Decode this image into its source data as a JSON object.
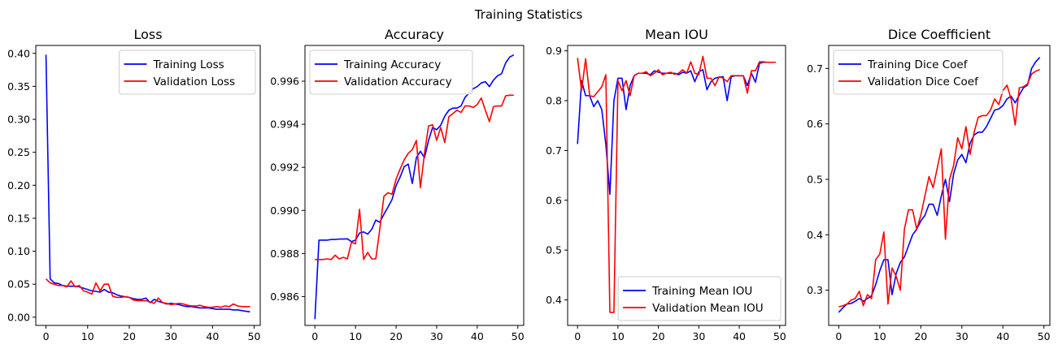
{
  "figure": {
    "title": "Training Statistics"
  },
  "chart_data": [
    {
      "type": "line",
      "title": "Loss",
      "xlabel": "",
      "ylabel": "",
      "xlim": [
        -2.45,
        51.45
      ],
      "ylim": [
        -0.0125,
        0.412
      ],
      "xticks": [
        0,
        10,
        20,
        30,
        40,
        50
      ],
      "yticks": [
        0.0,
        0.05,
        0.1,
        0.15,
        0.2,
        0.25,
        0.3,
        0.35,
        0.4
      ],
      "ytick_labels": [
        "0.00",
        "0.05",
        "0.10",
        "0.15",
        "0.20",
        "0.25",
        "0.30",
        "0.35",
        "0.40"
      ],
      "legend_loc": "upper right",
      "series": [
        {
          "name": "Training Loss",
          "color": "#0000ff",
          "values": [
            0.398,
            0.058,
            0.052,
            0.051,
            0.048,
            0.047,
            0.047,
            0.047,
            0.046,
            0.044,
            0.042,
            0.04,
            0.039,
            0.038,
            0.042,
            0.038,
            0.037,
            0.034,
            0.032,
            0.031,
            0.03,
            0.028,
            0.027,
            0.027,
            0.029,
            0.022,
            0.027,
            0.024,
            0.022,
            0.02,
            0.021,
            0.02,
            0.019,
            0.017,
            0.016,
            0.016,
            0.015,
            0.014,
            0.014,
            0.014,
            0.013,
            0.012,
            0.012,
            0.012,
            0.012,
            0.011,
            0.011,
            0.01,
            0.009,
            0.008
          ]
        },
        {
          "name": "Validation Loss",
          "color": "#ff0000",
          "values": [
            0.058,
            0.052,
            0.05,
            0.048,
            0.048,
            0.046,
            0.055,
            0.046,
            0.048,
            0.04,
            0.038,
            0.035,
            0.052,
            0.04,
            0.05,
            0.05,
            0.032,
            0.03,
            0.03,
            0.031,
            0.03,
            0.026,
            0.025,
            0.025,
            0.025,
            0.023,
            0.021,
            0.029,
            0.022,
            0.021,
            0.019,
            0.02,
            0.021,
            0.02,
            0.018,
            0.017,
            0.017,
            0.018,
            0.016,
            0.015,
            0.015,
            0.016,
            0.015,
            0.017,
            0.016,
            0.02,
            0.017,
            0.016,
            0.016,
            0.016
          ]
        }
      ]
    },
    {
      "type": "line",
      "title": "Accuracy",
      "xlabel": "",
      "ylabel": "",
      "xlim": [
        -2.45,
        51.45
      ],
      "ylim": [
        0.98466,
        0.99766
      ],
      "xticks": [
        0,
        10,
        20,
        30,
        40,
        50
      ],
      "yticks": [
        0.986,
        0.988,
        0.99,
        0.992,
        0.994,
        0.996
      ],
      "ytick_labels": [
        "0.986",
        "0.988",
        "0.990",
        "0.992",
        "0.994",
        "0.996"
      ],
      "legend_loc": "upper left",
      "series": [
        {
          "name": "Training Accuracy",
          "color": "#0000ff",
          "values": [
            0.98495,
            0.98862,
            0.98862,
            0.98862,
            0.98865,
            0.98865,
            0.98867,
            0.98867,
            0.98868,
            0.98855,
            0.98862,
            0.98895,
            0.989,
            0.9889,
            0.98912,
            0.98955,
            0.98945,
            0.98982,
            0.99015,
            0.9905,
            0.99115,
            0.99155,
            0.99203,
            0.99215,
            0.99125,
            0.99245,
            0.99275,
            0.99245,
            0.99325,
            0.99385,
            0.99375,
            0.99395,
            0.99438,
            0.99465,
            0.99475,
            0.99475,
            0.99485,
            0.99525,
            0.99545,
            0.99565,
            0.99575,
            0.99592,
            0.99598,
            0.99575,
            0.99605,
            0.99625,
            0.99635,
            0.99685,
            0.99712,
            0.99722
          ]
        },
        {
          "name": "Validation Accuracy",
          "color": "#ff0000",
          "values": [
            0.98772,
            0.98772,
            0.98772,
            0.98775,
            0.98772,
            0.98792,
            0.98775,
            0.98782,
            0.98775,
            0.98852,
            0.98845,
            0.99005,
            0.98772,
            0.98805,
            0.98775,
            0.98775,
            0.98915,
            0.99065,
            0.99082,
            0.99075,
            0.99145,
            0.99192,
            0.99235,
            0.99265,
            0.99282,
            0.99325,
            0.99105,
            0.99265,
            0.99392,
            0.99398,
            0.99325,
            0.99385,
            0.99315,
            0.99435,
            0.9945,
            0.99465,
            0.99455,
            0.99485,
            0.99485,
            0.99478,
            0.99492,
            0.99522,
            0.99465,
            0.99412,
            0.99482,
            0.99485,
            0.99485,
            0.99532,
            0.99535,
            0.99535
          ]
        }
      ]
    },
    {
      "type": "line",
      "title": "Mean IOU",
      "xlabel": "",
      "ylabel": "",
      "xlim": [
        -2.45,
        51.45
      ],
      "ylim": [
        0.3488,
        0.9108
      ],
      "xticks": [
        0,
        10,
        20,
        30,
        40,
        50
      ],
      "yticks": [
        0.4,
        0.5,
        0.6,
        0.7,
        0.8,
        0.9
      ],
      "ytick_labels": [
        "0.4",
        "0.5",
        "0.6",
        "0.7",
        "0.8",
        "0.9"
      ],
      "legend_loc": "lower right",
      "series": [
        {
          "name": "Training Mean IOU",
          "color": "#0000ff",
          "values": [
            0.713,
            0.84,
            0.81,
            0.81,
            0.788,
            0.8,
            0.782,
            0.712,
            0.612,
            0.8,
            0.845,
            0.845,
            0.782,
            0.83,
            0.85,
            0.855,
            0.855,
            0.855,
            0.852,
            0.86,
            0.857,
            0.855,
            0.855,
            0.855,
            0.855,
            0.852,
            0.857,
            0.855,
            0.86,
            0.838,
            0.858,
            0.862,
            0.822,
            0.838,
            0.845,
            0.847,
            0.848,
            0.8,
            0.848,
            0.85,
            0.85,
            0.85,
            0.83,
            0.855,
            0.837,
            0.875,
            0.877,
            0.877,
            0.877,
            0.877
          ]
        },
        {
          "name": "Validation Mean IOU",
          "color": "#ff0000",
          "values": [
            0.886,
            0.82,
            0.884,
            0.81,
            0.808,
            0.818,
            0.828,
            0.852,
            0.375,
            0.375,
            0.84,
            0.82,
            0.84,
            0.81,
            0.85,
            0.855,
            0.855,
            0.858,
            0.85,
            0.855,
            0.862,
            0.852,
            0.855,
            0.857,
            0.853,
            0.855,
            0.862,
            0.855,
            0.878,
            0.855,
            0.852,
            0.889,
            0.845,
            0.845,
            0.83,
            0.848,
            0.845,
            0.838,
            0.85,
            0.85,
            0.85,
            0.85,
            0.815,
            0.86,
            0.86,
            0.878,
            0.878,
            0.877,
            0.877,
            0.877
          ]
        }
      ]
    },
    {
      "type": "line",
      "title": "Dice Coefficient",
      "xlabel": "",
      "ylabel": "",
      "xlim": [
        -2.45,
        51.45
      ],
      "ylim": [
        0.2365,
        0.7415
      ],
      "xticks": [
        0,
        10,
        20,
        30,
        40,
        50
      ],
      "yticks": [
        0.3,
        0.4,
        0.5,
        0.6,
        0.7
      ],
      "ytick_labels": [
        "0.3",
        "0.4",
        "0.5",
        "0.6",
        "0.7"
      ],
      "legend_loc": "upper left",
      "series": [
        {
          "name": "Training Dice Coef",
          "color": "#0000ff",
          "values": [
            0.26,
            0.268,
            0.275,
            0.276,
            0.28,
            0.285,
            0.28,
            0.285,
            0.29,
            0.31,
            0.335,
            0.355,
            0.355,
            0.292,
            0.33,
            0.35,
            0.36,
            0.38,
            0.4,
            0.41,
            0.425,
            0.435,
            0.455,
            0.455,
            0.435,
            0.47,
            0.5,
            0.46,
            0.51,
            0.535,
            0.545,
            0.53,
            0.565,
            0.58,
            0.585,
            0.585,
            0.595,
            0.61,
            0.625,
            0.627,
            0.633,
            0.645,
            0.65,
            0.638,
            0.652,
            0.665,
            0.67,
            0.7,
            0.712,
            0.72
          ]
        },
        {
          "name": "Validation Dice Coef",
          "color": "#ff0000",
          "values": [
            0.27,
            0.272,
            0.275,
            0.282,
            0.285,
            0.298,
            0.272,
            0.292,
            0.285,
            0.355,
            0.365,
            0.405,
            0.275,
            0.34,
            0.325,
            0.3,
            0.41,
            0.445,
            0.445,
            0.41,
            0.435,
            0.47,
            0.505,
            0.485,
            0.52,
            0.555,
            0.392,
            0.5,
            0.525,
            0.575,
            0.555,
            0.595,
            0.545,
            0.585,
            0.612,
            0.615,
            0.615,
            0.625,
            0.645,
            0.635,
            0.66,
            0.67,
            0.645,
            0.598,
            0.665,
            0.667,
            0.672,
            0.69,
            0.695,
            0.698
          ]
        }
      ]
    }
  ]
}
